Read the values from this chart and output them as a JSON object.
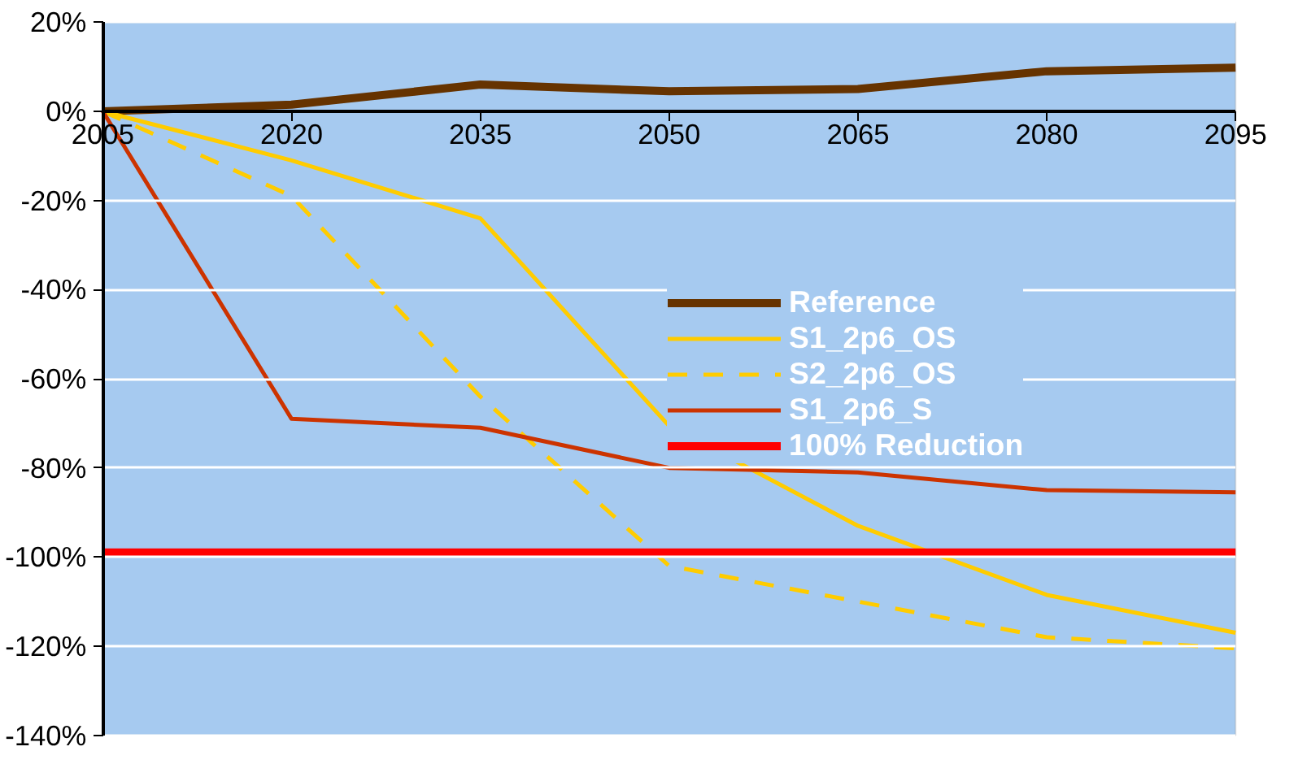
{
  "chart_data": {
    "type": "line",
    "x": [
      2005,
      2020,
      2035,
      2050,
      2065,
      2080,
      2095
    ],
    "xlim": [
      2005,
      2095
    ],
    "xticks": [
      2005,
      2020,
      2035,
      2050,
      2065,
      2080,
      2095
    ],
    "ylim": [
      -140,
      20
    ],
    "yticks": [
      {
        "value": 20,
        "label": "20%"
      },
      {
        "value": 0,
        "label": "0%"
      },
      {
        "value": -20,
        "label": "-20%"
      },
      {
        "value": -40,
        "label": "-40%"
      },
      {
        "value": -60,
        "label": "-60%"
      },
      {
        "value": -80,
        "label": "-80%"
      },
      {
        "value": -100,
        "label": "-100%"
      },
      {
        "value": -120,
        "label": "-120%"
      },
      {
        "value": -140,
        "label": "-140%"
      }
    ],
    "grid": "y",
    "legend": "right",
    "marker": "none",
    "series": [
      {
        "name": "Reference",
        "color": "#663300",
        "values": [
          0,
          1.5,
          6,
          4.5,
          5,
          9,
          9.8
        ]
      },
      {
        "name": "S1_2p6_OS",
        "color": "#ffcc00",
        "values": [
          0,
          -11,
          -24,
          -70.6,
          -93,
          -108.5,
          -117
        ]
      },
      {
        "name": "S2_2p6_OS",
        "color": "#ffcc00",
        "line_style": "dashed",
        "values": [
          0,
          -19,
          -64,
          -102,
          -110,
          -118,
          -120.5
        ]
      },
      {
        "name": "S1_2p6_S",
        "color": "#cc3300",
        "values": [
          0,
          -69,
          -71,
          -80,
          -81,
          -85,
          -85.5
        ]
      },
      {
        "name": "100% Reduction",
        "color": "#ff0000",
        "values": [
          -99,
          -99,
          -99,
          -99,
          -99,
          -99,
          -99
        ]
      }
    ]
  }
}
